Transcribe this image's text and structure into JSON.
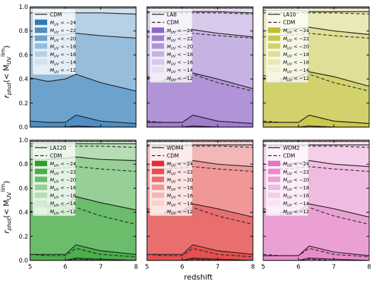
{
  "chart_data": {
    "type": "area",
    "xlabel": "redshift",
    "ylabel_main": "r",
    "ylabel_sub": "phot",
    "ylabel_paren": "(< M",
    "ylabel_msub": "UV",
    "ylabel_msup": "lim",
    "ylabel_close": ")",
    "xlim": [
      5,
      8
    ],
    "ylim": [
      0,
      1
    ],
    "xticks": [
      "5",
      "6",
      "7",
      "8"
    ],
    "yticks": [
      "0.0",
      "0.2",
      "0.4",
      "0.6",
      "0.8",
      "1.0"
    ],
    "x": [
      5,
      5.5,
      6,
      6.3,
      7,
      8
    ],
    "legend_bins": [
      "M_UV < −24",
      "M_UV < −22",
      "M_UV < −20",
      "M_UV < −18",
      "M_UV < −16",
      "M_UV < −14",
      "M_UV < −12"
    ],
    "reference": {
      "name": "CDM",
      "series": [
        [
          0.0,
          0.0,
          0.0,
          0.01,
          0.0,
          0.0
        ],
        [
          0.05,
          0.04,
          0.04,
          0.1,
          0.05,
          0.03
        ],
        [
          0.41,
          0.38,
          0.4,
          0.44,
          0.37,
          0.3
        ],
        [
          0.75,
          0.76,
          0.77,
          0.78,
          0.76,
          0.74
        ],
        [
          0.95,
          0.95,
          0.95,
          0.95,
          0.95,
          0.94
        ],
        [
          0.99,
          0.99,
          0.99,
          0.99,
          0.99,
          0.99
        ],
        [
          1.0,
          1.0,
          1.0,
          1.0,
          1.0,
          1.0
        ]
      ]
    },
    "panels": [
      {
        "model": "CDM",
        "legend": [
          "CDM"
        ],
        "color": "#2f7ab8",
        "has_reference_line": false,
        "series": [
          [
            0.0,
            0.0,
            0.0,
            0.01,
            0.0,
            0.0
          ],
          [
            0.05,
            0.04,
            0.04,
            0.1,
            0.05,
            0.03
          ],
          [
            0.41,
            0.38,
            0.4,
            0.44,
            0.37,
            0.3
          ],
          [
            0.75,
            0.76,
            0.77,
            0.78,
            0.76,
            0.74
          ],
          [
            0.95,
            0.95,
            0.95,
            0.95,
            0.95,
            0.94
          ],
          [
            0.99,
            0.99,
            0.99,
            0.99,
            0.99,
            0.99
          ],
          [
            1.0,
            1.0,
            1.0,
            1.0,
            1.0,
            1.0
          ]
        ]
      },
      {
        "model": "LA8",
        "legend": [
          "LA8",
          "CDM"
        ],
        "color": "#8e66c6",
        "has_reference_line": true,
        "series": [
          [
            0.0,
            0.0,
            0.0,
            0.01,
            0.0,
            0.0
          ],
          [
            0.04,
            0.04,
            0.04,
            0.1,
            0.05,
            0.03
          ],
          [
            0.42,
            0.4,
            0.4,
            0.45,
            0.4,
            0.32
          ],
          [
            0.79,
            0.79,
            0.8,
            0.81,
            0.78,
            0.75
          ],
          [
            0.96,
            0.96,
            0.96,
            0.96,
            0.96,
            0.95
          ],
          [
            0.99,
            0.99,
            0.99,
            0.99,
            0.99,
            0.99
          ],
          [
            1.0,
            1.0,
            1.0,
            1.0,
            1.0,
            1.0
          ]
        ]
      },
      {
        "model": "LA10",
        "legend": [
          "LA10",
          "CDM"
        ],
        "color": "#bfbf2f",
        "has_reference_line": true,
        "series": [
          [
            0.0,
            0.0,
            0.0,
            0.01,
            0.0,
            0.0
          ],
          [
            0.04,
            0.04,
            0.04,
            0.1,
            0.05,
            0.03
          ],
          [
            0.43,
            0.4,
            0.42,
            0.46,
            0.42,
            0.34
          ],
          [
            0.8,
            0.81,
            0.82,
            0.83,
            0.8,
            0.77
          ],
          [
            0.97,
            0.97,
            0.97,
            0.96,
            0.96,
            0.96
          ],
          [
            0.99,
            0.99,
            0.99,
            0.99,
            0.99,
            0.99
          ],
          [
            1.0,
            1.0,
            1.0,
            1.0,
            1.0,
            1.0
          ]
        ]
      },
      {
        "model": "LA120",
        "legend": [
          "LA120",
          "CDM"
        ],
        "color": "#2ca02c",
        "has_reference_line": true,
        "series": [
          [
            0.0,
            0.0,
            0.0,
            0.02,
            0.01,
            0.0
          ],
          [
            0.05,
            0.05,
            0.05,
            0.13,
            0.08,
            0.05
          ],
          [
            0.48,
            0.45,
            0.46,
            0.53,
            0.48,
            0.42
          ],
          [
            0.84,
            0.84,
            0.85,
            0.86,
            0.84,
            0.83
          ],
          [
            0.97,
            0.97,
            0.97,
            0.97,
            0.97,
            0.97
          ],
          [
            0.99,
            0.99,
            0.99,
            0.99,
            0.99,
            0.99
          ],
          [
            1.0,
            1.0,
            1.0,
            1.0,
            1.0,
            1.0
          ]
        ]
      },
      {
        "model": "WDM4",
        "legend": [
          "WDM4",
          "CDM"
        ],
        "color": "#e03030",
        "has_reference_line": true,
        "series": [
          [
            0.0,
            0.0,
            0.0,
            0.02,
            0.01,
            0.0
          ],
          [
            0.05,
            0.05,
            0.05,
            0.13,
            0.08,
            0.05
          ],
          [
            0.43,
            0.4,
            0.41,
            0.47,
            0.43,
            0.36
          ],
          [
            0.8,
            0.8,
            0.81,
            0.83,
            0.8,
            0.78
          ],
          [
            0.96,
            0.96,
            0.96,
            0.96,
            0.96,
            0.96
          ],
          [
            0.99,
            0.99,
            0.99,
            0.99,
            0.99,
            0.99
          ],
          [
            1.0,
            1.0,
            1.0,
            1.0,
            1.0,
            1.0
          ]
        ]
      },
      {
        "model": "WDM2",
        "legend": [
          "WDM2",
          "CDM"
        ],
        "color": "#e377c2",
        "has_reference_line": true,
        "series": [
          [
            0.0,
            0.0,
            0.0,
            0.02,
            0.01,
            0.0
          ],
          [
            0.04,
            0.04,
            0.04,
            0.12,
            0.07,
            0.04
          ],
          [
            0.43,
            0.4,
            0.41,
            0.47,
            0.43,
            0.36
          ],
          [
            0.8,
            0.8,
            0.81,
            0.83,
            0.8,
            0.78
          ],
          [
            0.96,
            0.96,
            0.96,
            0.96,
            0.96,
            0.96
          ],
          [
            0.99,
            0.99,
            0.99,
            0.99,
            0.99,
            0.99
          ],
          [
            1.0,
            1.0,
            1.0,
            1.0,
            1.0,
            1.0
          ]
        ]
      }
    ]
  }
}
